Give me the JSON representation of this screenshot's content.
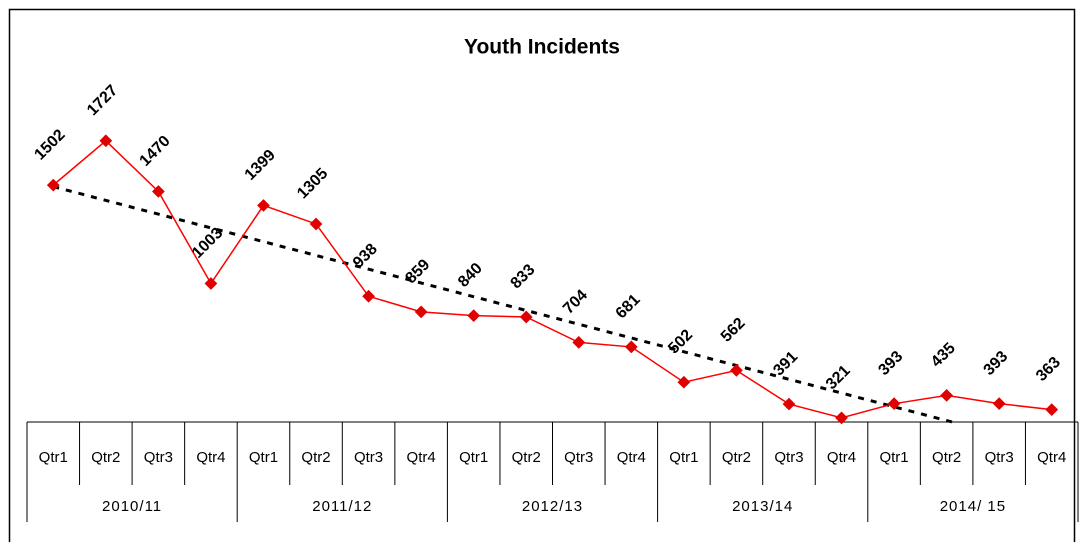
{
  "chart_data": {
    "type": "line",
    "title": "Youth Incidents",
    "categories": [
      "Qtr1",
      "Qtr2",
      "Qtr3",
      "Qtr4",
      "Qtr1",
      "Qtr2",
      "Qtr3",
      "Qtr4",
      "Qtr1",
      "Qtr2",
      "Qtr3",
      "Qtr4",
      "Qtr1",
      "Qtr2",
      "Qtr3",
      "Qtr4",
      "Qtr1",
      "Qtr2",
      "Qtr3",
      "Qtr4"
    ],
    "category_groups": [
      "2010/11",
      "2011/12",
      "2012/13",
      "2013/14",
      "2014/ 15"
    ],
    "values": [
      1502,
      1727,
      1470,
      1003,
      1399,
      1305,
      938,
      859,
      840,
      833,
      704,
      681,
      502,
      562,
      391,
      321,
      393,
      435,
      393,
      363
    ],
    "color": "#ff0000",
    "marker_color": "#e00000",
    "ylim": [
      300,
      2000
    ],
    "trendline": true,
    "trendline_color": "#000000"
  }
}
